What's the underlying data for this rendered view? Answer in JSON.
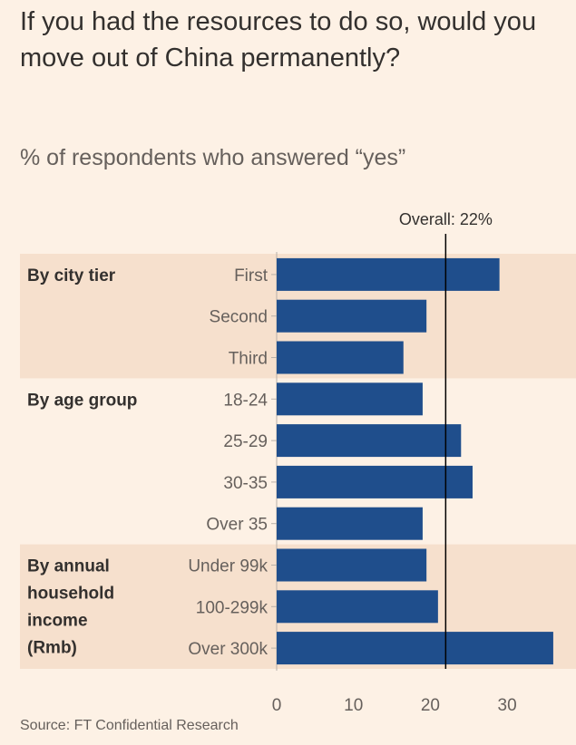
{
  "chart_data": {
    "type": "bar",
    "orientation": "horizontal",
    "title": "If you had the resources to do so, would you move out of China permanently?",
    "subtitle": "% of respondents who answered “yes”",
    "source": "Source: FT Confidential Research",
    "categories": [
      "First",
      "Second",
      "Third",
      "18-24",
      "25-29",
      "30-35",
      "Over 35",
      "Under 99k",
      "100-299k",
      "Over 300k"
    ],
    "values": [
      29,
      19.5,
      16.5,
      19,
      24,
      25.5,
      19,
      19.5,
      21,
      36
    ],
    "groups": [
      {
        "label_lines": [
          "By city tier"
        ],
        "categories": [
          "First",
          "Second",
          "Third"
        ],
        "shaded": true
      },
      {
        "label_lines": [
          "By age group"
        ],
        "categories": [
          "18-24",
          "25-29",
          "30-35",
          "Over 35"
        ],
        "shaded": false
      },
      {
        "label_lines": [
          "By annual",
          "household",
          "income",
          "(Rmb)"
        ],
        "categories": [
          "Under 99k",
          "100-299k",
          "Over 300k"
        ],
        "shaded": true
      }
    ],
    "xlim": [
      0,
      37
    ],
    "xticks": [
      0,
      10,
      20,
      30
    ],
    "reference_line": {
      "value": 22,
      "label": "Overall: 22%"
    },
    "colors": {
      "bar": "#1f4e8c",
      "band": "#f6e0cd",
      "background": "#fdf1e5",
      "ref_line": "#000000"
    }
  }
}
